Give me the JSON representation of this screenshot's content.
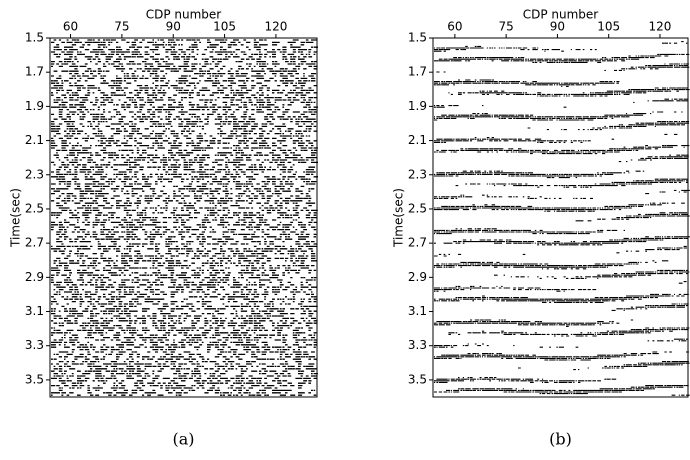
{
  "chart_data": [
    {
      "type": "wiggle",
      "caption": "(a)",
      "x_label": "CDP number",
      "y_label": "Time(sec)",
      "xlim": [
        54,
        132
      ],
      "xticks": [
        60,
        75,
        90,
        105,
        120
      ],
      "ylim": [
        1.5,
        3.6
      ],
      "yticks": [
        1.5,
        1.7,
        1.9,
        2.1,
        2.3,
        2.5,
        2.7,
        2.9,
        3.1,
        3.3,
        3.5
      ],
      "y_inverted": true
    },
    {
      "type": "wiggle",
      "caption": "(b)",
      "x_label": "CDP number",
      "y_label": "Time(sec)",
      "xlim": [
        53.6,
        128.2
      ],
      "xticks": [
        60,
        75,
        90,
        105,
        120
      ],
      "ylim": [
        1.5,
        3.6
      ],
      "yticks": [
        1.5,
        1.7,
        1.9,
        2.1,
        2.3,
        2.5,
        2.7,
        2.9,
        3.1,
        3.3,
        3.5
      ],
      "y_inverted": true
    }
  ]
}
